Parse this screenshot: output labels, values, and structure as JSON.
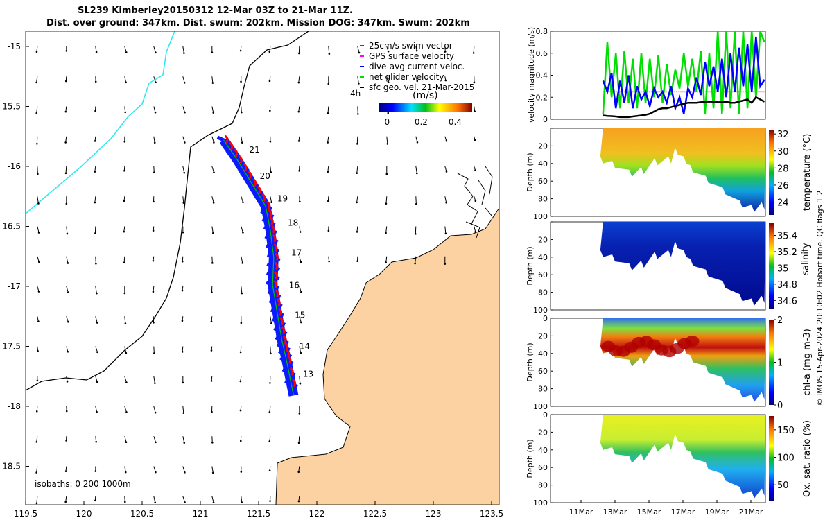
{
  "title": {
    "line1": "SL239 Kimberley20150312 12-Mar 03Z to 21-Mar 11Z.",
    "line2": "Dist. over ground: 347km. Dist. swum: 202km. Mission DOG: 347km. Swum: 202km"
  },
  "colors": {
    "land": "#fcd2a2",
    "track_dive": "#0a1cff",
    "swim": "#ff0000",
    "gps": "#ff00ff",
    "net": "#00e000",
    "isobath_shallow": "#30e8f0"
  },
  "chart_data": [
    {
      "type": "map",
      "name": "glider track map",
      "xlim": [
        119.5,
        123.56
      ],
      "ylim": [
        -18.82,
        -14.87
      ],
      "x_ticks": [
        119.5,
        120,
        120.5,
        121,
        121.5,
        122,
        122.5,
        123,
        123.5
      ],
      "x_tick_labels": [
        "119.5",
        "120",
        "120.5",
        "121",
        "121.5",
        "122",
        "122.5",
        "123",
        "123.5"
      ],
      "y_ticks": [
        -15,
        -15.5,
        -16,
        -16.5,
        -17,
        -17.5,
        -18,
        -18.5
      ],
      "y_tick_labels": [
        "-15",
        "15.5",
        "-16",
        "16.5",
        "-17",
        "17.5",
        "-18",
        "18.5"
      ],
      "legend": [
        "25cm/s swim vector",
        "GPS surface velocity",
        "dive-avg current veloc.",
        "net glider velocity",
        "sfc geo. vel. 21-Mar-2015"
      ],
      "legend_extra": "4h",
      "colorbar": {
        "label": "(m/s)",
        "ticks": [
          0,
          0.2,
          0.4
        ],
        "tick_labels": [
          "0",
          "0.2",
          "0.4"
        ],
        "range": [
          -0.05,
          0.5
        ]
      },
      "isobaths_label": "isobaths: 0   200  1000m",
      "track": [
        [
          121.2,
          -15.78
        ],
        [
          121.32,
          -15.95
        ],
        [
          121.44,
          -16.14
        ],
        [
          121.56,
          -16.33
        ],
        [
          121.6,
          -16.53
        ],
        [
          121.63,
          -16.76
        ],
        [
          121.62,
          -16.99
        ],
        [
          121.66,
          -17.22
        ],
        [
          121.7,
          -17.45
        ],
        [
          121.74,
          -17.62
        ],
        [
          121.8,
          -17.91
        ]
      ],
      "day_labels": [
        {
          "text": "21",
          "lon": 121.42,
          "lat": -15.86
        },
        {
          "text": "20",
          "lon": 121.51,
          "lat": -16.08
        },
        {
          "text": "19",
          "lon": 121.66,
          "lat": -16.27
        },
        {
          "text": "18",
          "lon": 121.75,
          "lat": -16.47
        },
        {
          "text": "17",
          "lon": 121.78,
          "lat": -16.72
        },
        {
          "text": "16",
          "lon": 121.76,
          "lat": -16.99
        },
        {
          "text": "15",
          "lon": 121.81,
          "lat": -17.24
        },
        {
          "text": "14",
          "lon": 121.85,
          "lat": -17.5
        },
        {
          "text": "13",
          "lon": 121.88,
          "lat": -17.73
        }
      ]
    },
    {
      "type": "line",
      "name": "velocity magnitude",
      "ylabel": "velocity magnitude (m/s)",
      "ylim": [
        0,
        0.8
      ],
      "y_ticks": [
        0,
        0.2,
        0.4,
        0.6,
        0.8
      ],
      "y_tick_labels": [
        "0",
        "0.2",
        "0.4",
        "0.6",
        "0.8"
      ],
      "x_start_day": 12.3,
      "x_step_day": 0.25,
      "series": [
        {
          "name": "net glider velocity",
          "color": "#00e000",
          "values": [
            0.05,
            0.7,
            0.2,
            0.6,
            0.1,
            0.62,
            0.15,
            0.55,
            0.1,
            0.6,
            0.15,
            0.55,
            0.2,
            0.58,
            0.15,
            0.5,
            0.22,
            0.45,
            0.28,
            0.6,
            0.3,
            0.55,
            0.25,
            0.62,
            0.05,
            0.6,
            0.1,
            0.8,
            0.05,
            0.8,
            0.1,
            0.8,
            0.05,
            0.8,
            0.1,
            0.8,
            0.2,
            0.8,
            0.7
          ]
        },
        {
          "name": "dive-avg current veloc.",
          "color": "#0000ff",
          "values": [
            0.35,
            0.25,
            0.42,
            0.1,
            0.35,
            0.15,
            0.4,
            0.1,
            0.3,
            0.18,
            0.25,
            0.12,
            0.28,
            0.2,
            0.25,
            0.15,
            0.3,
            0.1,
            0.2,
            0.05,
            0.28,
            0.2,
            0.38,
            0.22,
            0.52,
            0.3,
            0.48,
            0.25,
            0.55,
            0.2,
            0.6,
            0.25,
            0.65,
            0.3,
            0.68,
            0.25,
            0.75,
            0.3,
            0.36
          ]
        },
        {
          "name": "sfc geo. vel.",
          "color": "#000000",
          "values": [
            0.035,
            0.03,
            0.028,
            0.025,
            0.02,
            0.02,
            0.02,
            0.025,
            0.03,
            0.035,
            0.04,
            0.05,
            0.07,
            0.09,
            0.1,
            0.1,
            0.11,
            0.12,
            0.13,
            0.14,
            0.15,
            0.15,
            0.15,
            0.155,
            0.16,
            0.16,
            0.16,
            0.155,
            0.155,
            0.16,
            0.15,
            0.15,
            0.16,
            0.17,
            0.18,
            0.15,
            0.2,
            0.18,
            0.16
          ]
        },
        {
          "name": "25cm/s swim vector",
          "color": "#ff4040",
          "values": [
            0.25,
            0.25
          ]
        }
      ]
    },
    {
      "type": "heatmap",
      "name": "depth sections",
      "x_ticks": [
        11,
        13,
        15,
        17,
        19,
        21
      ],
      "x_tick_labels": [
        "11Mar",
        "13Mar",
        "15Mar",
        "17Mar",
        "19Mar",
        "21Mar"
      ],
      "xlim": [
        9.2,
        21.86
      ],
      "ylabel": "Depth (m)",
      "ylim": [
        100,
        0
      ],
      "y_ticks": [
        0,
        20,
        40,
        60,
        80,
        100
      ],
      "y_tick_labels": [
        "0",
        "20",
        "40",
        "60",
        "80",
        "100"
      ],
      "max_depth_profile": {
        "days": [
          12.3,
          13,
          14,
          14.7,
          15.5,
          16.3,
          16.7,
          17.2,
          17.6,
          18.5,
          19.5,
          20.5,
          21.2,
          21.8
        ],
        "depth": [
          40,
          45,
          55,
          52,
          42,
          40,
          30,
          40,
          50,
          62,
          75,
          90,
          95,
          92
        ]
      },
      "panels": [
        {
          "variable": "temperature",
          "cbar_label": "temperature (°C)",
          "range": [
            22.5,
            32.5
          ],
          "cbar_ticks": [
            24,
            26,
            28,
            30,
            32
          ],
          "cbar_tick_labels": [
            "24",
            "26",
            "28",
            "30",
            "32"
          ]
        },
        {
          "variable": "salinity",
          "cbar_label": "salinity",
          "range": [
            34.5,
            35.55
          ],
          "cbar_ticks": [
            34.6,
            34.8,
            35,
            35.2,
            35.4
          ],
          "cbar_tick_labels": [
            "34.6",
            "34.8",
            "35",
            "35.2",
            "35.4"
          ]
        },
        {
          "variable": "chl-a",
          "cbar_label": "chl-a (mg m-3)",
          "range": [
            0,
            2
          ],
          "cbar_ticks": [
            0,
            1,
            2
          ],
          "cbar_tick_labels": [
            "0",
            "1",
            "2"
          ]
        },
        {
          "variable": "oxygen",
          "cbar_label": "Ox. sat. ratio (%)",
          "range": [
            20,
            175
          ],
          "cbar_ticks": [
            50,
            100,
            150
          ],
          "cbar_tick_labels": [
            "50",
            "100",
            "150"
          ]
        }
      ]
    }
  ],
  "credit": "© IMOS 15-Apr-2024 20:10:02 Hobart time. QC flags 1  2"
}
